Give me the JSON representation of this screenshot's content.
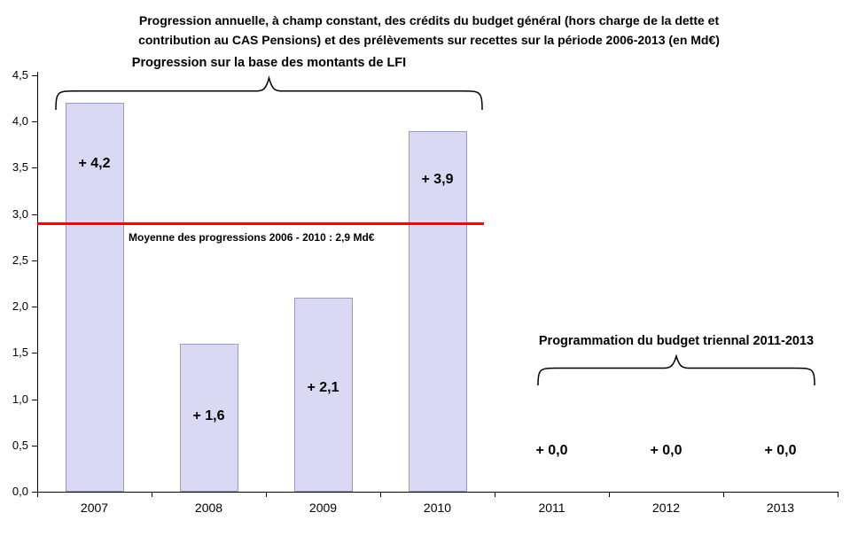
{
  "header": {
    "title_line1": "Progression annuelle, à champ constant, des crédits du budget général (hors charge de la dette et",
    "title_line2": "contribution au CAS Pensions) et des prélèvements sur recettes sur la période 2006-2013 (en Md€)"
  },
  "chart_data": {
    "type": "bar",
    "title": "Progression annuelle, à champ constant, des crédits du budget général (hors charge de la dette et contribution au CAS Pensions) et des prélèvements sur recettes sur la période 2006-2013 (en Md€)",
    "xlabel": "",
    "ylabel": "",
    "grid": false,
    "legend": "none",
    "categories": [
      "2007",
      "2008",
      "2009",
      "2010",
      "2011",
      "2012",
      "2013"
    ],
    "values": [
      4.2,
      1.6,
      2.1,
      3.9,
      0.0,
      0.0,
      0.0
    ],
    "bar_labels": [
      "+ 4,2",
      "+ 1,6",
      "+ 2,1",
      "+ 3,9",
      "+ 0,0",
      "+ 0,0",
      "+ 0,0"
    ],
    "label_positions": [
      3.53,
      0.8,
      1.11,
      3.36,
      0.43,
      0.43,
      0.43
    ],
    "ylim": [
      0,
      4.5
    ],
    "ytick_step": 0.5,
    "ytick_labels": [
      "0,0",
      "0,5",
      "1,0",
      "1,5",
      "2,0",
      "2,5",
      "3,0",
      "3,5",
      "4,0",
      "4,5"
    ],
    "bar_color": "#d9d9f3",
    "bar_border_color": "#9999cc",
    "axis_color": "#000000",
    "reference_line": {
      "value": 2.9,
      "color": "#ff0000",
      "label": "Moyenne des progressions 2006 - 2010 : 2,9 Md€",
      "span_categories": [
        "2007",
        "2010"
      ]
    },
    "annotations": [
      {
        "text": "Progression sur la base des montants de LFI",
        "from": "2007",
        "to": "2010"
      },
      {
        "text": "Programmation du budget triennal 2011-2013",
        "from": "2011",
        "to": "2013"
      }
    ]
  }
}
